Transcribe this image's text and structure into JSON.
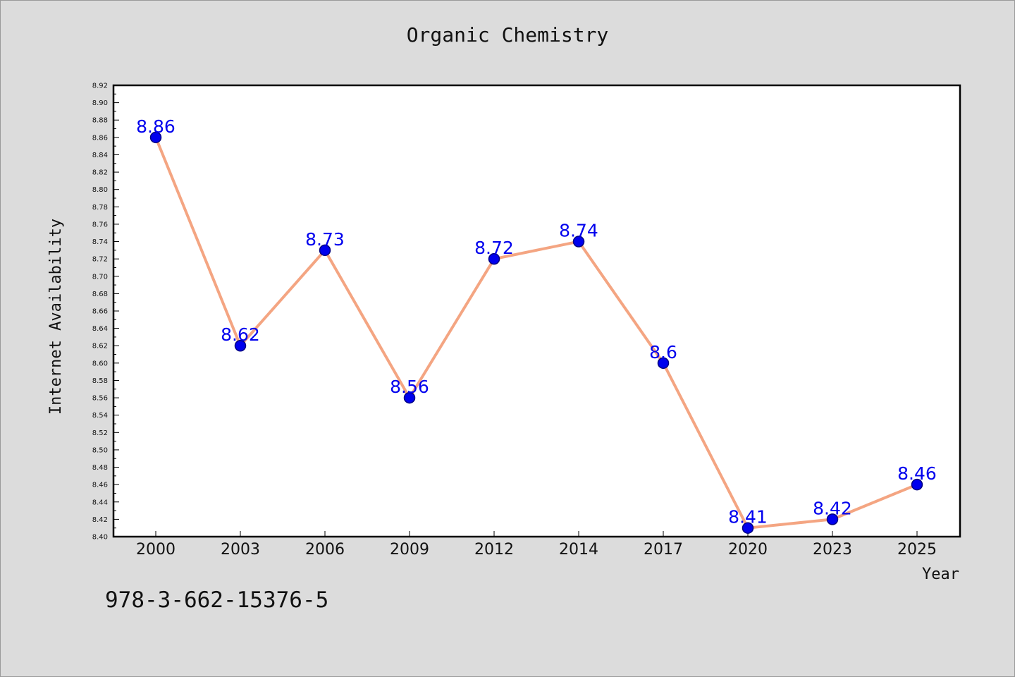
{
  "title": "Organic Chemistry",
  "footer": {
    "isbn": "978-3-662-15376-5"
  },
  "colors": {
    "background": "#dcdcdc",
    "plot_background": "#ffffff",
    "line": "#f4a582",
    "marker_fill": "#0000ee",
    "marker_edge": "#000080",
    "data_label": "#0000ee"
  },
  "chart_data": {
    "type": "line",
    "title": "Organic Chemistry",
    "xlabel": "Year",
    "ylabel": "Internet Availability",
    "categories": [
      "2000",
      "2003",
      "2006",
      "2009",
      "2012",
      "2014",
      "2017",
      "2020",
      "2023",
      "2025"
    ],
    "series": [
      {
        "values": [
          8.86,
          8.62,
          8.73,
          8.56,
          8.72,
          8.74,
          8.6,
          8.41,
          8.42,
          8.46
        ],
        "labels": [
          "8.86",
          "8.62",
          "8.73",
          "8.56",
          "8.72",
          "8.74",
          "8.6",
          "8.41",
          "8.42",
          "8.46"
        ]
      }
    ],
    "ylim": [
      8.4,
      8.92
    ],
    "yticks": [
      "8.40",
      "8.42",
      "8.44",
      "8.46",
      "8.48",
      "8.50",
      "8.52",
      "8.54",
      "8.56",
      "8.58",
      "8.60",
      "8.62",
      "8.64",
      "8.66",
      "8.68",
      "8.70",
      "8.72",
      "8.74",
      "8.76",
      "8.78",
      "8.80",
      "8.82",
      "8.84",
      "8.86",
      "8.88",
      "8.90",
      "8.92"
    ],
    "grid": false,
    "legend": "none"
  }
}
